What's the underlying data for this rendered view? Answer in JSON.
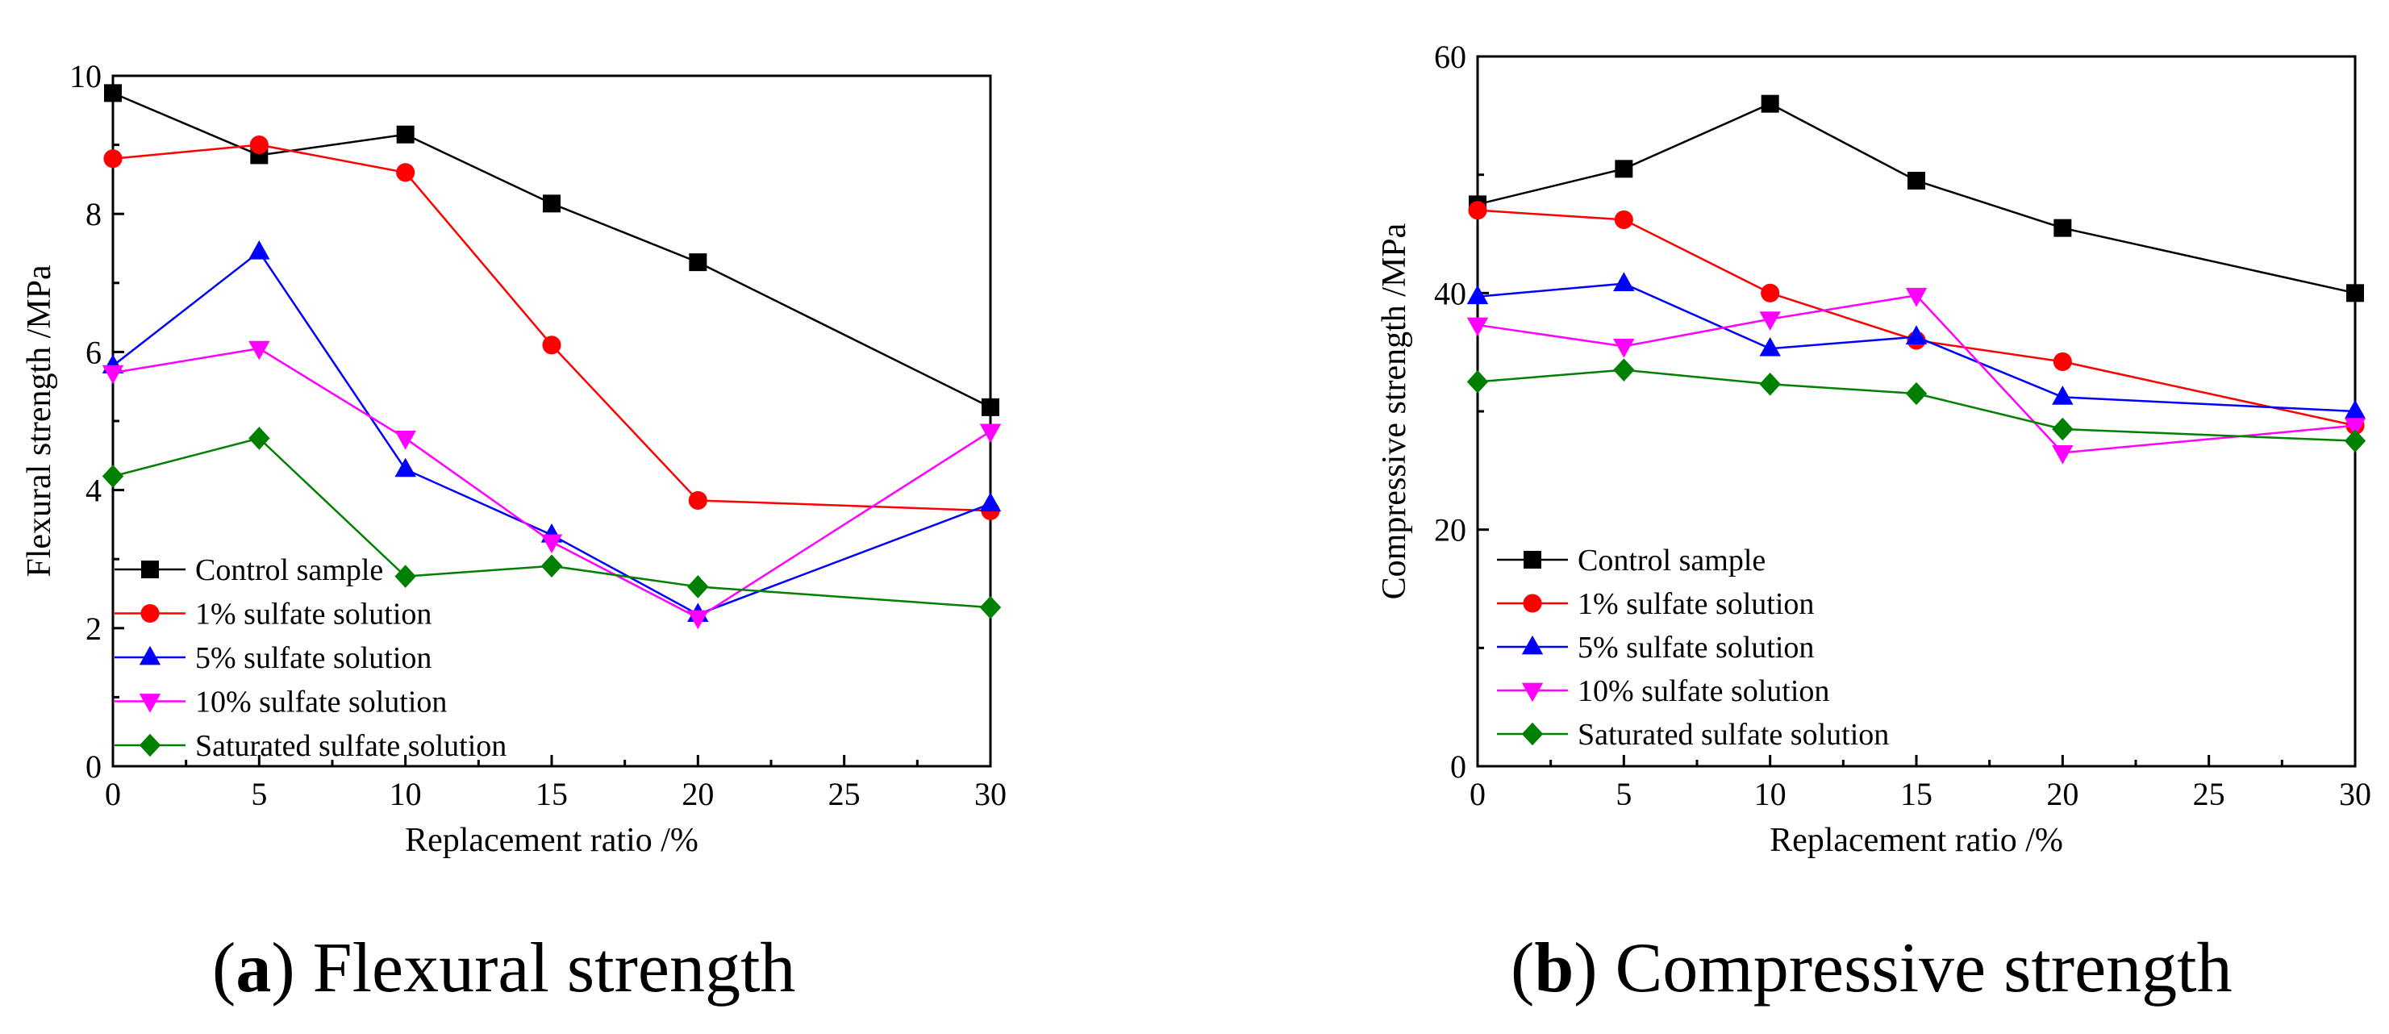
{
  "captions": [
    {
      "letter": "a",
      "text": "Flexural strength"
    },
    {
      "letter": "b",
      "text": "Compressive strength"
    }
  ],
  "chart_data": [
    {
      "type": "line",
      "title": "",
      "xlabel": "Replacement ratio  /%",
      "ylabel": "Flexural strength /MPa",
      "xlim": [
        0,
        30
      ],
      "ylim": [
        0,
        10
      ],
      "xticks": [
        0,
        5,
        10,
        15,
        20,
        25,
        30
      ],
      "yticks": [
        0,
        2,
        4,
        6,
        8,
        10
      ],
      "x": [
        0,
        5,
        10,
        15,
        20,
        30
      ],
      "grid": false,
      "legend_position": "bottom-left",
      "series": [
        {
          "name": "Control sample",
          "marker": "square",
          "color": "#000000",
          "values": [
            9.75,
            8.85,
            9.15,
            8.15,
            7.3,
            5.2
          ]
        },
        {
          "name": "1% sulfate solution",
          "marker": "circle",
          "color": "#ff0000",
          "values": [
            8.8,
            9.0,
            8.6,
            6.1,
            3.85,
            3.7
          ]
        },
        {
          "name": "5% sulfate solution",
          "marker": "triangle-up",
          "color": "#0000ff",
          "values": [
            5.8,
            7.45,
            4.3,
            3.35,
            2.2,
            3.8
          ]
        },
        {
          "name": "10% sulfate solution",
          "marker": "triangle-down",
          "color": "#ff00ff",
          "values": [
            5.7,
            6.05,
            4.75,
            3.25,
            2.15,
            4.85
          ]
        },
        {
          "name": "Saturated sulfate solution",
          "marker": "diamond",
          "color": "#008000",
          "values": [
            4.2,
            4.75,
            2.75,
            2.9,
            2.6,
            2.3
          ]
        }
      ]
    },
    {
      "type": "line",
      "title": "",
      "xlabel": "Replacement ratio  /%",
      "ylabel": "Compressive strength /MPa",
      "xlim": [
        0,
        30
      ],
      "ylim": [
        0,
        60
      ],
      "xticks": [
        0,
        5,
        10,
        15,
        20,
        25,
        30
      ],
      "yticks": [
        0,
        20,
        40,
        60
      ],
      "x": [
        0,
        5,
        10,
        15,
        20,
        30
      ],
      "grid": false,
      "legend_position": "bottom-left",
      "series": [
        {
          "name": "Control sample",
          "marker": "square",
          "color": "#000000",
          "values": [
            47.5,
            50.5,
            56.0,
            49.5,
            45.5,
            40.0
          ]
        },
        {
          "name": "1% sulfate solution",
          "marker": "circle",
          "color": "#ff0000",
          "values": [
            47.0,
            46.2,
            40.0,
            36.0,
            34.2,
            28.8
          ]
        },
        {
          "name": "5% sulfate solution",
          "marker": "triangle-up",
          "color": "#0000ff",
          "values": [
            39.7,
            40.8,
            35.3,
            36.3,
            31.2,
            30.0
          ]
        },
        {
          "name": "10% sulfate solution",
          "marker": "triangle-down",
          "color": "#ff00ff",
          "values": [
            37.3,
            35.5,
            37.8,
            39.8,
            26.5,
            28.8
          ]
        },
        {
          "name": "Saturated sulfate solution",
          "marker": "diamond",
          "color": "#008000",
          "values": [
            32.5,
            33.5,
            32.3,
            31.5,
            28.5,
            27.5
          ]
        }
      ]
    }
  ]
}
